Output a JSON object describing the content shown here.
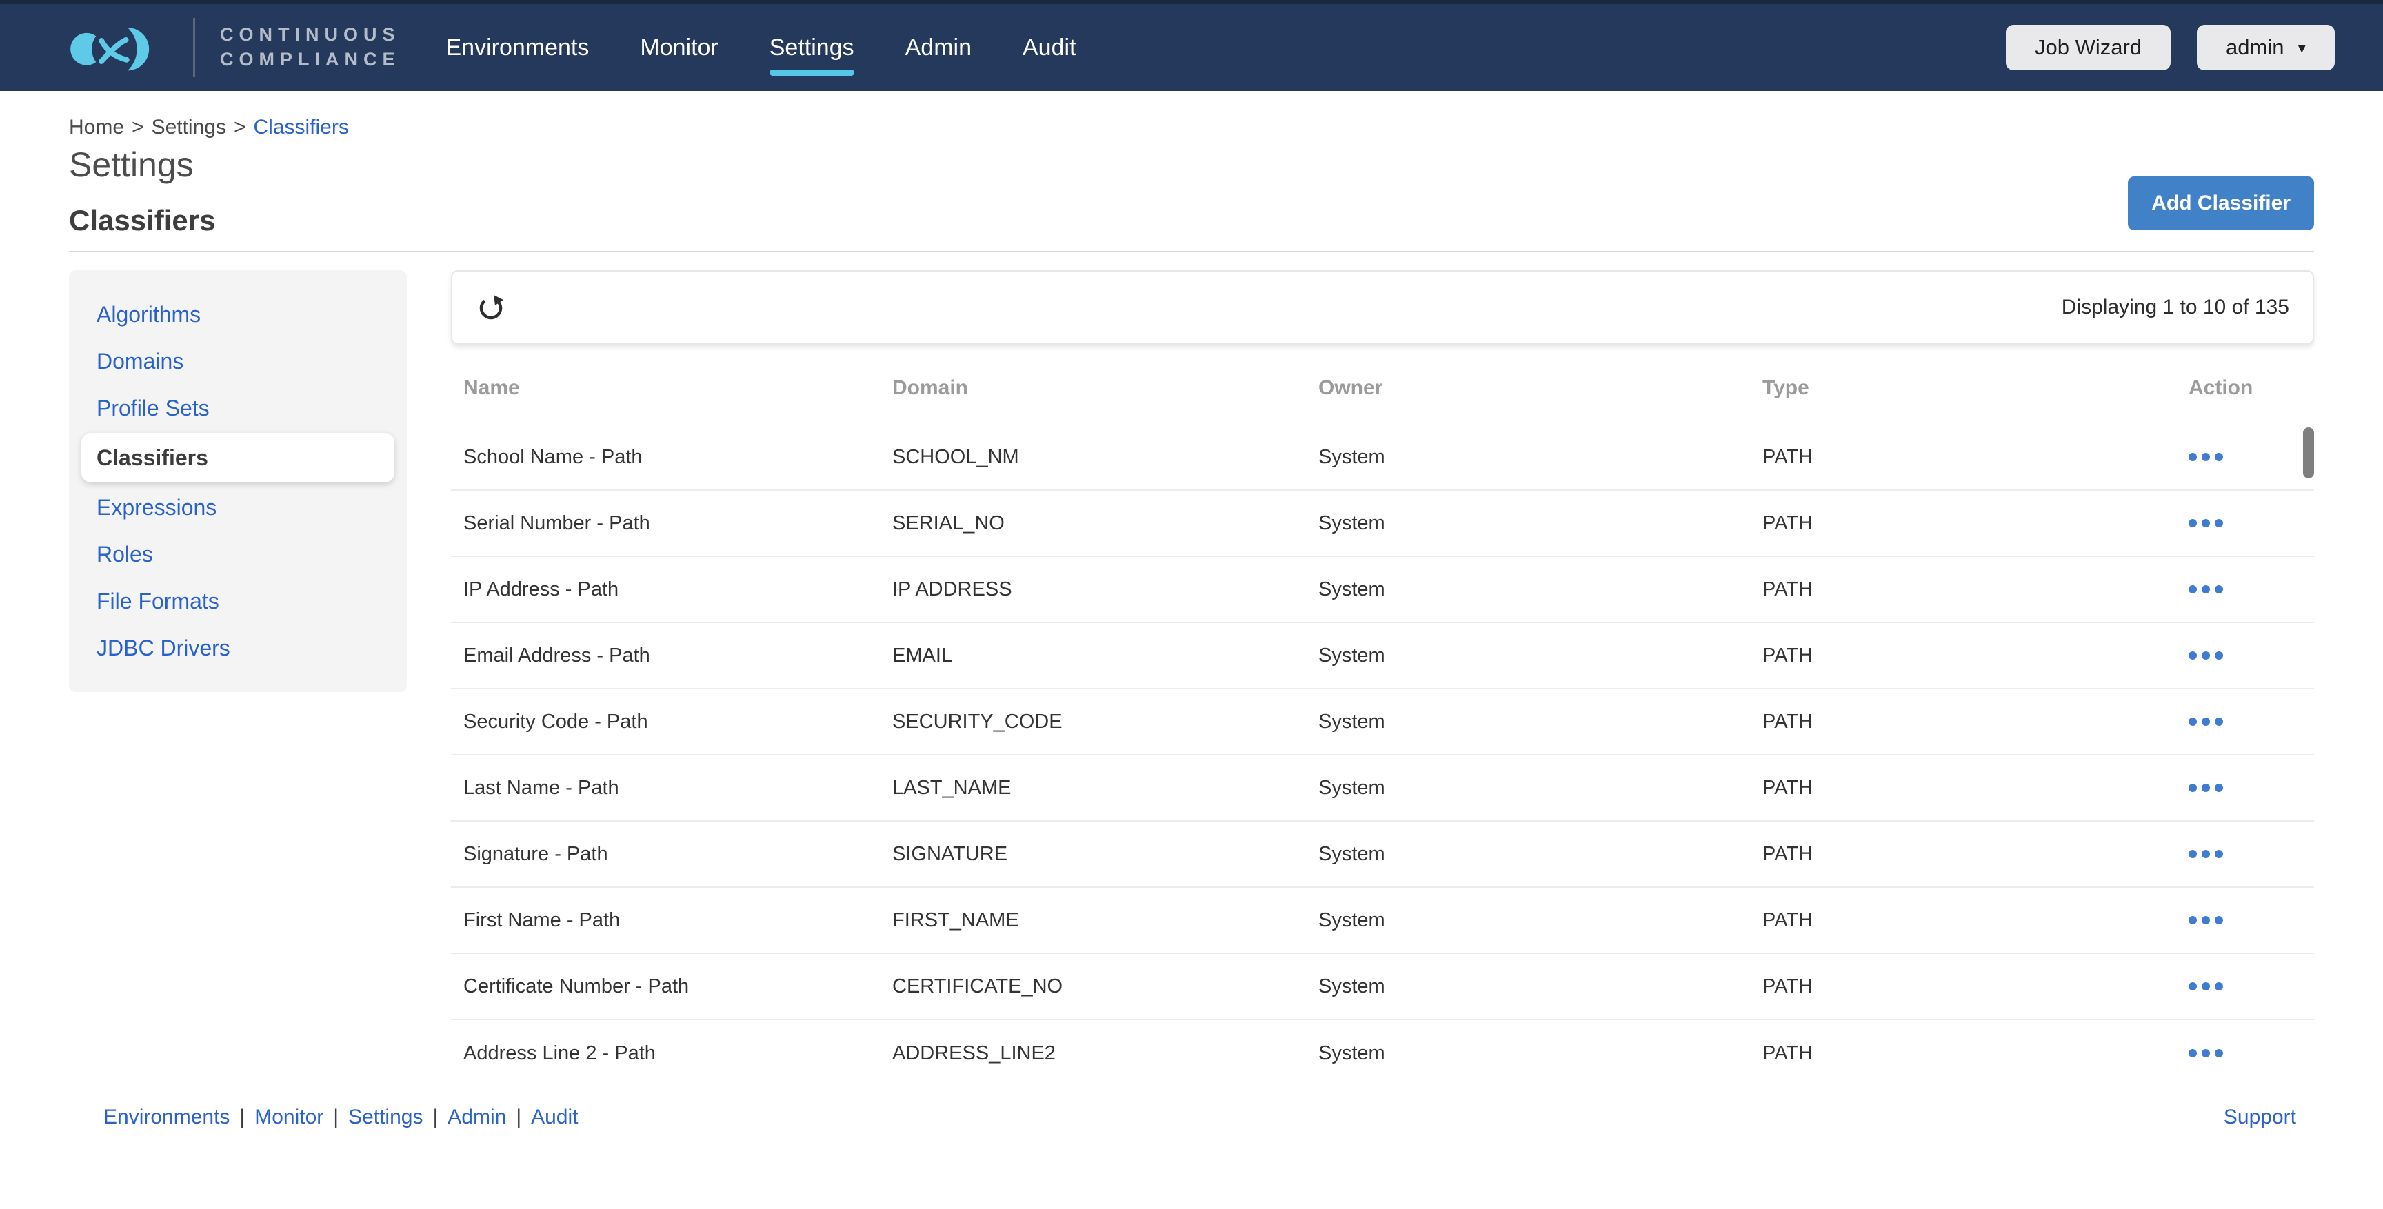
{
  "colors": {
    "topbar_bg": "#24395c",
    "accent_cyan": "#56c7e9",
    "link_blue": "#2a62c9",
    "sidebar_link_blue": "#2a62cc",
    "primary_button_blue": "#4181c8",
    "action_dots_blue": "#3d7cd1",
    "row_highlight": "#f8f8f8",
    "header_text_gray": "#9b9b9b"
  },
  "icons": {
    "logo": "infinity-x-mark",
    "refresh": "circular-arrow-refresh",
    "user_caret": "▾",
    "row_actions": "three-dots-ellipsis"
  },
  "topbar": {
    "brand": {
      "line1": "CONTINUOUS",
      "line2": "COMPLIANCE"
    },
    "nav": [
      {
        "label": "Environments",
        "active": false
      },
      {
        "label": "Monitor",
        "active": false
      },
      {
        "label": "Settings",
        "active": true
      },
      {
        "label": "Admin",
        "active": false
      },
      {
        "label": "Audit",
        "active": false
      }
    ],
    "job_wizard_label": "Job Wizard",
    "user_menu_label": "admin"
  },
  "breadcrumb": {
    "separator": ">",
    "items": [
      {
        "label": "Home",
        "current": false
      },
      {
        "label": "Settings",
        "current": false
      },
      {
        "label": "Classifiers",
        "current": true
      }
    ]
  },
  "page": {
    "title": "Settings",
    "section_title": "Classifiers",
    "add_button_label": "Add Classifier"
  },
  "sidebar": {
    "items": [
      {
        "label": "Algorithms",
        "active": false
      },
      {
        "label": "Domains",
        "active": false
      },
      {
        "label": "Profile Sets",
        "active": false
      },
      {
        "label": "Classifiers",
        "active": true
      },
      {
        "label": "Expressions",
        "active": false
      },
      {
        "label": "Roles",
        "active": false
      },
      {
        "label": "File Formats",
        "active": false
      },
      {
        "label": "JDBC Drivers",
        "active": false
      }
    ]
  },
  "table": {
    "displaying_text": "Displaying 1 to 10 of 135",
    "columns": [
      "Name",
      "Domain",
      "Owner",
      "Type",
      "Action"
    ],
    "rows": [
      {
        "name": "School Name - Path",
        "domain": "SCHOOL_NM",
        "owner": "System",
        "type": "PATH"
      },
      {
        "name": "Serial Number - Path",
        "domain": "SERIAL_NO",
        "owner": "System",
        "type": "PATH"
      },
      {
        "name": "IP Address - Path",
        "domain": "IP ADDRESS",
        "owner": "System",
        "type": "PATH"
      },
      {
        "name": "Email Address - Path",
        "domain": "EMAIL",
        "owner": "System",
        "type": "PATH"
      },
      {
        "name": "Security Code - Path",
        "domain": "SECURITY_CODE",
        "owner": "System",
        "type": "PATH"
      },
      {
        "name": "Last Name - Path",
        "domain": "LAST_NAME",
        "owner": "System",
        "type": "PATH"
      },
      {
        "name": "Signature - Path",
        "domain": "SIGNATURE",
        "owner": "System",
        "type": "PATH"
      },
      {
        "name": "First Name - Path",
        "domain": "FIRST_NAME",
        "owner": "System",
        "type": "PATH"
      },
      {
        "name": "Certificate Number - Path",
        "domain": "CERTIFICATE_NO",
        "owner": "System",
        "type": "PATH"
      },
      {
        "name": "Address Line 2 - Path",
        "domain": "ADDRESS_LINE2",
        "owner": "System",
        "type": "PATH"
      }
    ]
  },
  "footer": {
    "separator": "|",
    "links": [
      "Environments",
      "Monitor",
      "Settings",
      "Admin",
      "Audit"
    ],
    "support_label": "Support"
  }
}
